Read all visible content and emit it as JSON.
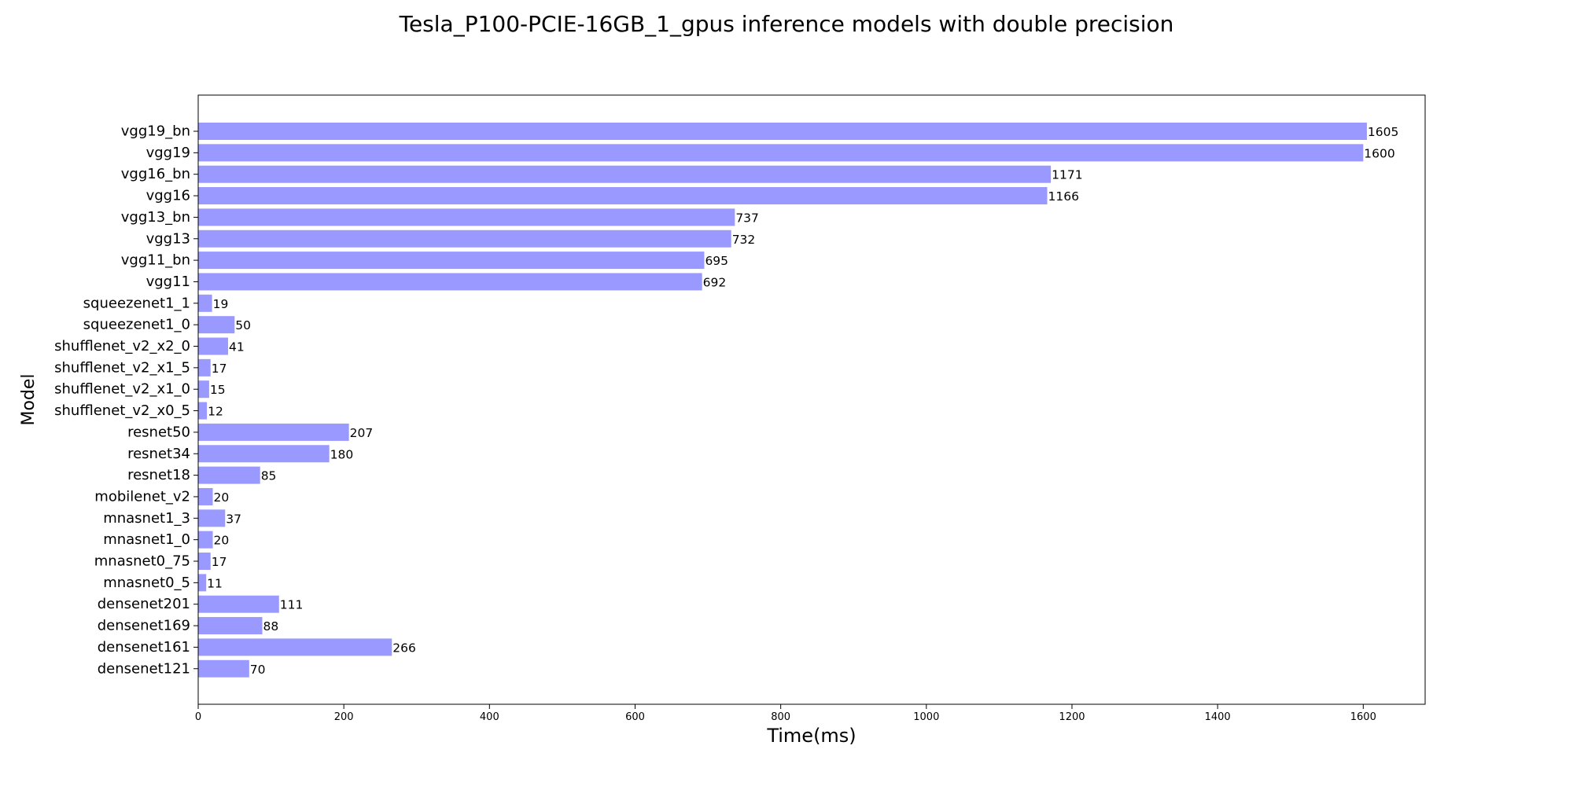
{
  "chart_data": {
    "type": "bar",
    "orientation": "horizontal",
    "title": "Tesla_P100-PCIE-16GB_1_gpus inference models with double precision",
    "xlabel": "Time(ms)",
    "ylabel": "Model",
    "xlim": [
      0,
      1685
    ],
    "xticks": [
      0,
      200,
      400,
      600,
      800,
      1000,
      1200,
      1400,
      1600
    ],
    "grid": false,
    "bar_color": "#9999ff",
    "categories": [
      "vgg19_bn",
      "vgg19",
      "vgg16_bn",
      "vgg16",
      "vgg13_bn",
      "vgg13",
      "vgg11_bn",
      "vgg11",
      "squeezenet1_1",
      "squeezenet1_0",
      "shufflenet_v2_x2_0",
      "shufflenet_v2_x1_5",
      "shufflenet_v2_x1_0",
      "shufflenet_v2_x0_5",
      "resnet50",
      "resnet34",
      "resnet18",
      "mobilenet_v2",
      "mnasnet1_3",
      "mnasnet1_0",
      "mnasnet0_75",
      "mnasnet0_5",
      "densenet201",
      "densenet169",
      "densenet161",
      "densenet121"
    ],
    "values": [
      1605,
      1600,
      1171,
      1166,
      737,
      732,
      695,
      692,
      19,
      50,
      41,
      17,
      15,
      12,
      207,
      180,
      85,
      20,
      37,
      20,
      17,
      11,
      111,
      88,
      266,
      70
    ]
  }
}
